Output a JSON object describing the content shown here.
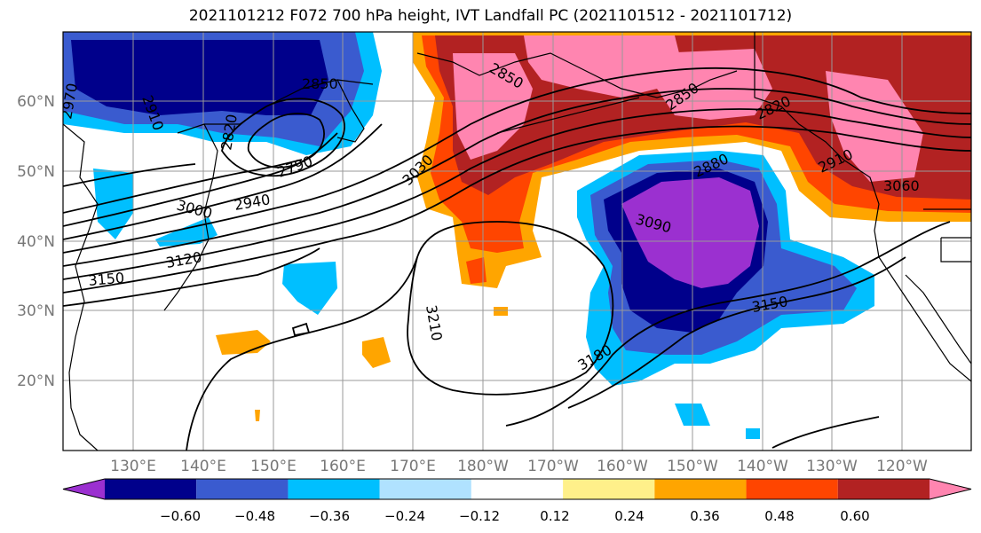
{
  "title": "2021101212 F072 700 hPa height, IVT Landfall PC (2021101512 - 2021101712)",
  "map": {
    "lat_labels": [
      "60°N",
      "50°N",
      "40°N",
      "30°N",
      "20°N"
    ],
    "lon_labels": [
      "130°E",
      "140°E",
      "150°E",
      "160°E",
      "170°E",
      "180°W",
      "170°W",
      "160°W",
      "150°W",
      "140°W",
      "130°W",
      "120°W"
    ],
    "contour_labels": [
      "2970",
      "2910",
      "2850",
      "2820",
      "2790",
      "2940",
      "3000",
      "3030",
      "2850",
      "2850",
      "2880",
      "2820",
      "2910",
      "3060",
      "3090",
      "3120",
      "3150",
      "3210",
      "3180",
      "3150"
    ]
  },
  "colorbar": {
    "colors": [
      "#9b30d0",
      "#00008b",
      "#3a5bcf",
      "#00bfff",
      "#b0e2ff",
      "#ffffff",
      "#fff08a",
      "#ffa500",
      "#ff4500",
      "#b22222",
      "#ff85b0"
    ],
    "tick_labels": [
      "−0.60",
      "−0.48",
      "−0.36",
      "−0.24",
      "−0.12",
      "0.12",
      "0.24",
      "0.36",
      "0.48",
      "0.60"
    ]
  }
}
